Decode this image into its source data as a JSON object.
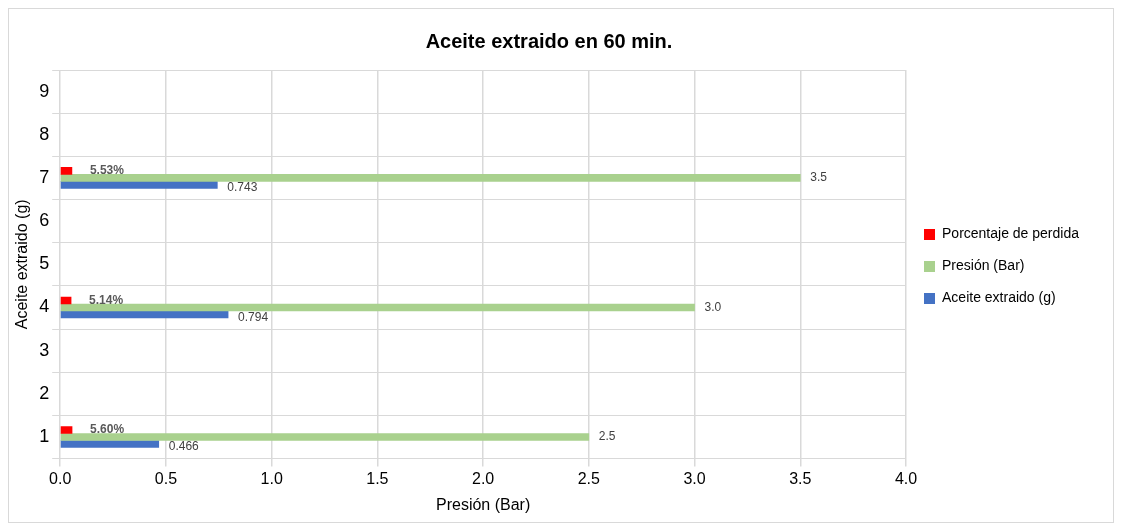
{
  "chart_data": {
    "type": "bar",
    "orientation": "horizontal",
    "title": "Aceite extraido en 60 min.",
    "xlabel": "Presión (Bar)",
    "ylabel": "Aceite extraido (g)",
    "categories": [
      "9",
      "8",
      "7",
      "6",
      "5",
      "4",
      "3",
      "2",
      "1"
    ],
    "series": [
      {
        "name": "Porcentaje de perdida",
        "color": "#ff0000",
        "values": [
          null,
          null,
          0.0553,
          null,
          null,
          0.0514,
          null,
          null,
          0.056
        ],
        "value_labels": [
          null,
          null,
          "5.53%",
          null,
          null,
          "5.14%",
          null,
          null,
          "5.60%"
        ]
      },
      {
        "name": "Presión (Bar)",
        "color": "#a9d18e",
        "values": [
          null,
          null,
          3.5,
          null,
          null,
          3.0,
          null,
          null,
          2.5
        ],
        "value_labels": [
          null,
          null,
          "3.5",
          null,
          null,
          "3.0",
          null,
          null,
          "2.5"
        ]
      },
      {
        "name": "Aceite extraido (g)",
        "color": "#4472c4",
        "values": [
          null,
          null,
          0.743,
          null,
          null,
          0.794,
          null,
          null,
          0.466
        ],
        "value_labels": [
          null,
          null,
          "0.743",
          null,
          null,
          "0.794",
          null,
          null,
          "0.466"
        ]
      }
    ],
    "xlim": [
      0,
      4
    ],
    "xticks": [
      {
        "value": 0,
        "label": "0.0"
      },
      {
        "value": 0.5,
        "label": "0.5"
      },
      {
        "value": 1,
        "label": "1.0"
      },
      {
        "value": 1.5,
        "label": "1.5"
      },
      {
        "value": 2,
        "label": "2.0"
      },
      {
        "value": 2.5,
        "label": "2.5"
      },
      {
        "value": 3,
        "label": "3.0"
      },
      {
        "value": 3.5,
        "label": "3.5"
      },
      {
        "value": 4,
        "label": "4.0"
      }
    ],
    "grid": true,
    "legend": "right"
  }
}
